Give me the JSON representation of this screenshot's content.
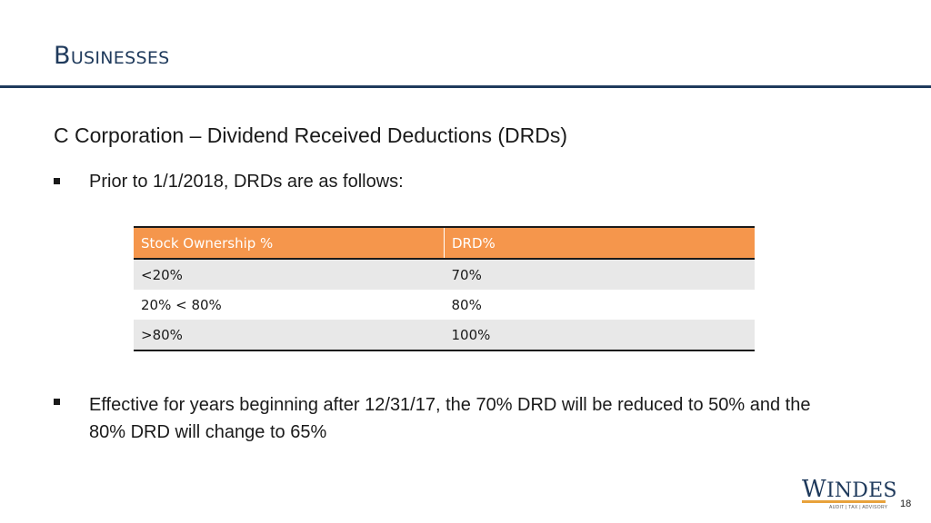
{
  "slide": {
    "title": "Businesses",
    "subtitle": "C Corporation – Dividend Received Deductions (DRDs)",
    "page_number": "18"
  },
  "bullets": [
    {
      "text": "Prior to 1/1/2018, DRDs are as follows:"
    },
    {
      "text": "Effective for years beginning after 12/31/17, the 70% DRD will be reduced to 50% and the 80% DRD will change to 65%"
    }
  ],
  "table": {
    "headers": [
      "Stock Ownership %",
      "DRD%"
    ],
    "rows": [
      [
        "<20%",
        "70%"
      ],
      [
        "20% < 80%",
        "80%"
      ],
      [
        ">80%",
        "100%"
      ]
    ]
  },
  "logo": {
    "first_letter": "W",
    "rest": "INDES",
    "tagline": "AUDIT | TAX | ADVISORY"
  },
  "colors": {
    "title": "#1f3a5c",
    "table_header": "#f5964c",
    "row_shade": "#e8e8e8",
    "logo_accent": "#e8a23c"
  }
}
